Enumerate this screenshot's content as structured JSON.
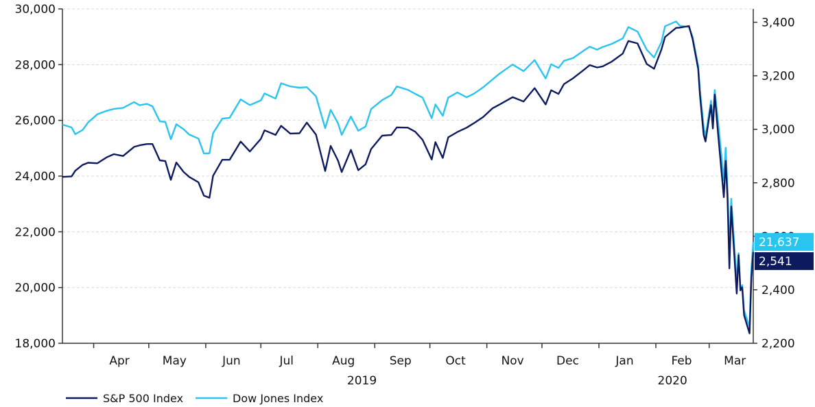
{
  "chart_data": {
    "type": "line",
    "title": "",
    "xlabel": "",
    "ylabel_left": "",
    "ylabel_right": "",
    "x_range": [
      "2019-03-15",
      "2020-03-25"
    ],
    "left_axis": {
      "min": 18000,
      "max": 30000,
      "ticks": [
        18000,
        20000,
        22000,
        24000,
        26000,
        28000,
        30000
      ],
      "tick_labels": [
        "18,000",
        "20,000",
        "22,000",
        "24,000",
        "26,000",
        "28,000",
        "30,000"
      ]
    },
    "right_axis": {
      "min": 2200,
      "max": 3450,
      "ticks": [
        2200,
        2400,
        2600,
        2800,
        3000,
        3200,
        3400
      ],
      "tick_labels": [
        "2,200",
        "2,400",
        "2,600",
        "2,800",
        "3,000",
        "3,200",
        "3,400"
      ]
    },
    "month_labels": [
      {
        "label": "Apr",
        "date": "2019-04-15"
      },
      {
        "label": "May",
        "date": "2019-05-15"
      },
      {
        "label": "Jun",
        "date": "2019-06-15"
      },
      {
        "label": "Jul",
        "date": "2019-07-15"
      },
      {
        "label": "Aug",
        "date": "2019-08-15"
      },
      {
        "label": "Sep",
        "date": "2019-09-15"
      },
      {
        "label": "Oct",
        "date": "2019-10-15"
      },
      {
        "label": "Nov",
        "date": "2019-11-15"
      },
      {
        "label": "Dec",
        "date": "2019-12-15"
      },
      {
        "label": "Jan",
        "date": "2020-01-15"
      },
      {
        "label": "Feb",
        "date": "2020-02-15"
      },
      {
        "label": "Mar",
        "date": "2020-03-15"
      }
    ],
    "month_boundaries": [
      "2019-04-01",
      "2019-05-01",
      "2019-06-01",
      "2019-07-01",
      "2019-08-01",
      "2019-09-01",
      "2019-10-01",
      "2019-11-01",
      "2019-12-01",
      "2020-01-01",
      "2020-02-01",
      "2020-03-01"
    ],
    "year_labels": [
      {
        "label": "2019",
        "date": "2019-08-25"
      },
      {
        "label": "2020",
        "date": "2020-02-10"
      }
    ],
    "grid": true,
    "legend_position": "bottom-left",
    "series": [
      {
        "name": "S&P 500 Index",
        "axis": "right",
        "color": "#0d1b5e",
        "end_label": "2,541",
        "points": [
          [
            "2019-03-15",
            2822
          ],
          [
            "2019-03-20",
            2824
          ],
          [
            "2019-03-22",
            2845
          ],
          [
            "2019-03-26",
            2867
          ],
          [
            "2019-03-29",
            2875
          ],
          [
            "2019-04-03",
            2873
          ],
          [
            "2019-04-08",
            2895
          ],
          [
            "2019-04-12",
            2907
          ],
          [
            "2019-04-17",
            2900
          ],
          [
            "2019-04-23",
            2934
          ],
          [
            "2019-04-26",
            2940
          ],
          [
            "2019-04-30",
            2945
          ],
          [
            "2019-05-03",
            2945
          ],
          [
            "2019-05-07",
            2884
          ],
          [
            "2019-05-10",
            2881
          ],
          [
            "2019-05-13",
            2811
          ],
          [
            "2019-05-16",
            2876
          ],
          [
            "2019-05-20",
            2840
          ],
          [
            "2019-05-23",
            2822
          ],
          [
            "2019-05-28",
            2802
          ],
          [
            "2019-05-31",
            2752
          ],
          [
            "2019-06-03",
            2744
          ],
          [
            "2019-06-05",
            2826
          ],
          [
            "2019-06-10",
            2886
          ],
          [
            "2019-06-14",
            2886
          ],
          [
            "2019-06-20",
            2954
          ],
          [
            "2019-06-25",
            2917
          ],
          [
            "2019-07-01",
            2964
          ],
          [
            "2019-07-03",
            2996
          ],
          [
            "2019-07-09",
            2979
          ],
          [
            "2019-07-12",
            3013
          ],
          [
            "2019-07-17",
            2984
          ],
          [
            "2019-07-22",
            2985
          ],
          [
            "2019-07-26",
            3025
          ],
          [
            "2019-07-31",
            2980
          ],
          [
            "2019-08-05",
            2844
          ],
          [
            "2019-08-08",
            2938
          ],
          [
            "2019-08-12",
            2883
          ],
          [
            "2019-08-14",
            2840
          ],
          [
            "2019-08-19",
            2923
          ],
          [
            "2019-08-23",
            2847
          ],
          [
            "2019-08-27",
            2869
          ],
          [
            "2019-08-30",
            2926
          ],
          [
            "2019-09-05",
            2976
          ],
          [
            "2019-09-10",
            2979
          ],
          [
            "2019-09-13",
            3007
          ],
          [
            "2019-09-19",
            3006
          ],
          [
            "2019-09-23",
            2991
          ],
          [
            "2019-09-27",
            2961
          ],
          [
            "2019-10-02",
            2887
          ],
          [
            "2019-10-04",
            2952
          ],
          [
            "2019-10-08",
            2893
          ],
          [
            "2019-10-11",
            2970
          ],
          [
            "2019-10-16",
            2990
          ],
          [
            "2019-10-21",
            3006
          ],
          [
            "2019-10-25",
            3023
          ],
          [
            "2019-10-30",
            3046
          ],
          [
            "2019-11-04",
            3078
          ],
          [
            "2019-11-08",
            3093
          ],
          [
            "2019-11-15",
            3120
          ],
          [
            "2019-11-21",
            3104
          ],
          [
            "2019-11-27",
            3154
          ],
          [
            "2019-12-03",
            3093
          ],
          [
            "2019-12-06",
            3146
          ],
          [
            "2019-12-10",
            3132
          ],
          [
            "2019-12-13",
            3169
          ],
          [
            "2019-12-18",
            3191
          ],
          [
            "2019-12-24",
            3223
          ],
          [
            "2019-12-27",
            3240
          ],
          [
            "2019-12-31",
            3231
          ],
          [
            "2020-01-03",
            3235
          ],
          [
            "2020-01-08",
            3253
          ],
          [
            "2020-01-14",
            3283
          ],
          [
            "2020-01-17",
            3330
          ],
          [
            "2020-01-22",
            3321
          ],
          [
            "2020-01-27",
            3244
          ],
          [
            "2020-01-31",
            3226
          ],
          [
            "2020-02-04",
            3298
          ],
          [
            "2020-02-06",
            3345
          ],
          [
            "2020-02-12",
            3379
          ],
          [
            "2020-02-14",
            3380
          ],
          [
            "2020-02-19",
            3386
          ],
          [
            "2020-02-21",
            3337
          ],
          [
            "2020-02-24",
            3226
          ],
          [
            "2020-02-25",
            3128
          ],
          [
            "2020-02-27",
            2979
          ],
          [
            "2020-02-28",
            2954
          ],
          [
            "2020-03-02",
            3090
          ],
          [
            "2020-03-03",
            3003
          ],
          [
            "2020-03-04",
            3130
          ],
          [
            "2020-03-06",
            2972
          ],
          [
            "2020-03-09",
            2746
          ],
          [
            "2020-03-10",
            2882
          ],
          [
            "2020-03-11",
            2741
          ],
          [
            "2020-03-12",
            2480
          ],
          [
            "2020-03-13",
            2711
          ],
          [
            "2020-03-16",
            2386
          ],
          [
            "2020-03-17",
            2529
          ],
          [
            "2020-03-18",
            2398
          ],
          [
            "2020-03-19",
            2409
          ],
          [
            "2020-03-20",
            2305
          ],
          [
            "2020-03-23",
            2237
          ],
          [
            "2020-03-24",
            2447
          ],
          [
            "2020-03-25",
            2541
          ]
        ]
      },
      {
        "name": "Dow Jones Index",
        "axis": "left",
        "color": "#29c4f0",
        "end_label": "21,637",
        "points": [
          [
            "2019-03-15",
            25849
          ],
          [
            "2019-03-20",
            25746
          ],
          [
            "2019-03-22",
            25502
          ],
          [
            "2019-03-26",
            25658
          ],
          [
            "2019-03-29",
            25929
          ],
          [
            "2019-04-03",
            26218
          ],
          [
            "2019-04-08",
            26341
          ],
          [
            "2019-04-12",
            26412
          ],
          [
            "2019-04-17",
            26450
          ],
          [
            "2019-04-23",
            26656
          ],
          [
            "2019-04-26",
            26543
          ],
          [
            "2019-04-30",
            26593
          ],
          [
            "2019-05-03",
            26505
          ],
          [
            "2019-05-07",
            25965
          ],
          [
            "2019-05-10",
            25942
          ],
          [
            "2019-05-13",
            25324
          ],
          [
            "2019-05-16",
            25862
          ],
          [
            "2019-05-20",
            25680
          ],
          [
            "2019-05-23",
            25490
          ],
          [
            "2019-05-28",
            25347
          ],
          [
            "2019-05-31",
            24815
          ],
          [
            "2019-06-03",
            24819
          ],
          [
            "2019-06-05",
            25539
          ],
          [
            "2019-06-10",
            26062
          ],
          [
            "2019-06-14",
            26090
          ],
          [
            "2019-06-20",
            26753
          ],
          [
            "2019-06-25",
            26548
          ],
          [
            "2019-07-01",
            26717
          ],
          [
            "2019-07-03",
            26966
          ],
          [
            "2019-07-09",
            26783
          ],
          [
            "2019-07-12",
            27332
          ],
          [
            "2019-07-17",
            27220
          ],
          [
            "2019-07-22",
            27172
          ],
          [
            "2019-07-26",
            27192
          ],
          [
            "2019-07-31",
            26864
          ],
          [
            "2019-08-05",
            25718
          ],
          [
            "2019-08-08",
            26378
          ],
          [
            "2019-08-12",
            25897
          ],
          [
            "2019-08-14",
            25480
          ],
          [
            "2019-08-19",
            26136
          ],
          [
            "2019-08-23",
            25629
          ],
          [
            "2019-08-27",
            25778
          ],
          [
            "2019-08-30",
            26403
          ],
          [
            "2019-09-05",
            26728
          ],
          [
            "2019-09-10",
            26909
          ],
          [
            "2019-09-13",
            27220
          ],
          [
            "2019-09-19",
            27095
          ],
          [
            "2019-09-23",
            26950
          ],
          [
            "2019-09-27",
            26820
          ],
          [
            "2019-10-02",
            26079
          ],
          [
            "2019-10-04",
            26573
          ],
          [
            "2019-10-08",
            26164
          ],
          [
            "2019-10-11",
            26817
          ],
          [
            "2019-10-16",
            27002
          ],
          [
            "2019-10-21",
            26827
          ],
          [
            "2019-10-25",
            26958
          ],
          [
            "2019-10-30",
            27186
          ],
          [
            "2019-11-04",
            27462
          ],
          [
            "2019-11-08",
            27681
          ],
          [
            "2019-11-15",
            28004
          ],
          [
            "2019-11-21",
            27766
          ],
          [
            "2019-11-27",
            28164
          ],
          [
            "2019-12-03",
            27503
          ],
          [
            "2019-12-06",
            28015
          ],
          [
            "2019-12-10",
            27881
          ],
          [
            "2019-12-13",
            28135
          ],
          [
            "2019-12-18",
            28239
          ],
          [
            "2019-12-24",
            28515
          ],
          [
            "2019-12-27",
            28645
          ],
          [
            "2019-12-31",
            28538
          ],
          [
            "2020-01-03",
            28634
          ],
          [
            "2020-01-08",
            28745
          ],
          [
            "2020-01-14",
            28940
          ],
          [
            "2020-01-17",
            29348
          ],
          [
            "2020-01-22",
            29186
          ],
          [
            "2020-01-27",
            28535
          ],
          [
            "2020-01-31",
            28256
          ],
          [
            "2020-02-04",
            28807
          ],
          [
            "2020-02-06",
            29379
          ],
          [
            "2020-02-12",
            29551
          ],
          [
            "2020-02-14",
            29398
          ],
          [
            "2020-02-19",
            29348
          ],
          [
            "2020-02-21",
            28992
          ],
          [
            "2020-02-24",
            27960
          ],
          [
            "2020-02-25",
            27081
          ],
          [
            "2020-02-27",
            25766
          ],
          [
            "2020-02-28",
            25409
          ],
          [
            "2020-03-02",
            26703
          ],
          [
            "2020-03-03",
            25917
          ],
          [
            "2020-03-04",
            27091
          ],
          [
            "2020-03-06",
            25865
          ],
          [
            "2020-03-09",
            23851
          ],
          [
            "2020-03-10",
            25018
          ],
          [
            "2020-03-11",
            23553
          ],
          [
            "2020-03-12",
            21200
          ],
          [
            "2020-03-13",
            23186
          ],
          [
            "2020-03-16",
            20189
          ],
          [
            "2020-03-17",
            21237
          ],
          [
            "2020-03-18",
            19899
          ],
          [
            "2020-03-19",
            20087
          ],
          [
            "2020-03-20",
            19174
          ],
          [
            "2020-03-23",
            18592
          ],
          [
            "2020-03-24",
            20705
          ],
          [
            "2020-03-25",
            21637
          ]
        ]
      }
    ]
  }
}
